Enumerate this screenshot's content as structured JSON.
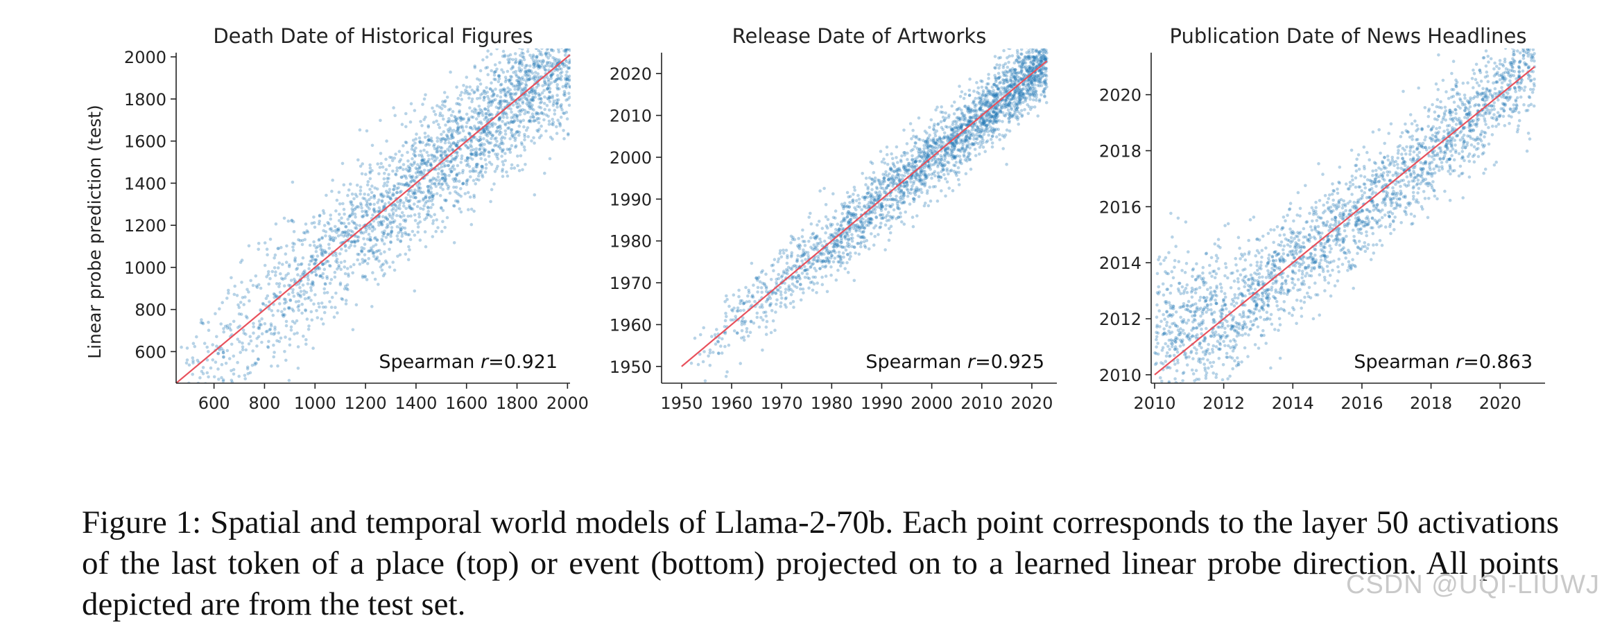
{
  "figure": {
    "caption": "Figure 1: Spatial and temporal world models of Llama-2-70b. Each point corresponds to the layer 50 activations of the last token of a place (top) or event (bottom) projected on to a learned linear probe direction. All points depicted are from the test set.",
    "watermark": "CSDN @UQI-LIUWJ"
  },
  "colors": {
    "points": "#1f77b4",
    "fit_line": "#e8505b"
  },
  "chart_data": [
    {
      "type": "scatter",
      "title": "Death Date of Historical Figures",
      "xlabel": "",
      "ylabel": "Linear probe prediction (test)",
      "xlim": [
        450,
        2010
      ],
      "ylim": [
        450,
        2020
      ],
      "xticks": [
        600,
        800,
        1000,
        1200,
        1400,
        1600,
        1800,
        2000
      ],
      "yticks": [
        600,
        800,
        1000,
        1200,
        1400,
        1600,
        1800,
        2000
      ],
      "reference_line": [
        [
          450,
          450
        ],
        [
          2010,
          2010
        ]
      ],
      "annotation_prefix": "Spearman ",
      "annotation_var": "r",
      "annotation_value": "=0.921",
      "spearman_r": 0.921,
      "n_points": 2600,
      "spread": 150
    },
    {
      "type": "scatter",
      "title": "Release Date of Artworks",
      "xlabel": "",
      "ylabel": "",
      "xlim": [
        1946,
        2025
      ],
      "ylim": [
        1946,
        2025
      ],
      "xticks": [
        1950,
        1960,
        1970,
        1980,
        1990,
        2000,
        2010,
        2020
      ],
      "yticks": [
        1950,
        1960,
        1970,
        1980,
        1990,
        2000,
        2010,
        2020
      ],
      "reference_line": [
        [
          1950,
          1950
        ],
        [
          2023,
          2023
        ]
      ],
      "annotation_prefix": "Spearman ",
      "annotation_var": "r",
      "annotation_value": "=0.925",
      "spearman_r": 0.925,
      "n_points": 2600,
      "spread": 4.2
    },
    {
      "type": "scatter",
      "title": "Publication Date of News Headlines",
      "xlabel": "",
      "ylabel": "",
      "xlim": [
        2009.9,
        2021.3
      ],
      "ylim": [
        2009.7,
        2021.5
      ],
      "xticks": [
        2010,
        2012,
        2014,
        2016,
        2018,
        2020
      ],
      "yticks": [
        2010,
        2012,
        2014,
        2016,
        2018,
        2020
      ],
      "reference_line": [
        [
          2010,
          2010
        ],
        [
          2021,
          2021
        ]
      ],
      "annotation_prefix": "Spearman ",
      "annotation_var": "r",
      "annotation_value": "=0.863",
      "spearman_r": 0.863,
      "n_points": 2400,
      "spread": 0.95
    }
  ]
}
